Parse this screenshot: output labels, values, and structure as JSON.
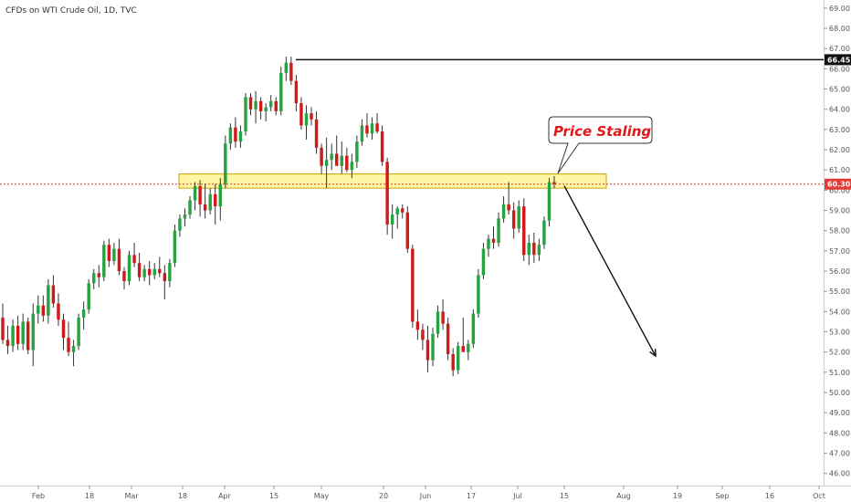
{
  "header": {
    "title": "CFDs on WTI Crude Oil, 1D, TVC"
  },
  "colors": {
    "up": "#26a240",
    "down": "#d01a1a",
    "wick": "#333333",
    "zone_fill": "#fff59a",
    "zone_stroke": "#c8a400",
    "resistance_line": "#111111",
    "current_line": "#e53935",
    "tag_black": "#111111",
    "tag_red": "#e53935"
  },
  "annotations": {
    "callout": "Price Staling",
    "resistance_tag": "66.45",
    "current_tag": "60.30"
  },
  "chart_data": {
    "type": "candlestick",
    "title": "CFDs on WTI Crude Oil, 1D, TVC",
    "ylim": [
      45.4,
      69.4
    ],
    "y_ticks": [
      "46.00",
      "47.00",
      "48.00",
      "49.00",
      "50.00",
      "51.00",
      "52.00",
      "53.00",
      "54.00",
      "55.00",
      "56.00",
      "57.00",
      "58.00",
      "59.00",
      "60.00",
      "61.00",
      "62.00",
      "63.00",
      "64.00",
      "65.00",
      "66.00",
      "67.00",
      "68.00",
      "69.00"
    ],
    "x_ticks": [
      "Feb",
      "18",
      "Mar",
      "18",
      "Apr",
      "15",
      "May",
      "20",
      "Jun",
      "17",
      "Jul",
      "15",
      "Aug",
      "19",
      "Sep",
      "16",
      "Oct"
    ],
    "resistance_level": 66.45,
    "current_price": 60.3,
    "supply_zone": [
      60.1,
      60.8
    ],
    "projection": {
      "from": 60.3,
      "to": 51.8
    },
    "ohlc": [
      [
        53.7,
        54.4,
        52.4,
        52.6
      ],
      [
        52.6,
        53.3,
        51.9,
        52.3
      ],
      [
        52.3,
        53.6,
        52.0,
        53.3
      ],
      [
        53.3,
        53.8,
        52.1,
        52.4
      ],
      [
        52.4,
        53.9,
        52.1,
        53.5
      ],
      [
        53.5,
        53.7,
        51.9,
        52.1
      ],
      [
        52.1,
        54.4,
        51.3,
        53.9
      ],
      [
        53.9,
        54.8,
        53.4,
        54.3
      ],
      [
        54.3,
        54.8,
        53.5,
        53.8
      ],
      [
        53.8,
        55.6,
        53.4,
        55.3
      ],
      [
        55.3,
        55.8,
        54.2,
        54.4
      ],
      [
        54.4,
        54.9,
        53.3,
        53.6
      ],
      [
        53.6,
        53.9,
        52.1,
        52.7
      ],
      [
        52.7,
        53.5,
        51.8,
        52.0
      ],
      [
        52.0,
        52.6,
        51.3,
        52.3
      ],
      [
        52.3,
        53.9,
        52.1,
        53.7
      ],
      [
        53.7,
        54.5,
        53.1,
        54.1
      ],
      [
        54.1,
        55.6,
        53.9,
        55.4
      ],
      [
        55.4,
        56.1,
        55.1,
        55.9
      ],
      [
        55.9,
        56.3,
        55.2,
        55.7
      ],
      [
        55.7,
        57.5,
        55.5,
        57.3
      ],
      [
        57.3,
        57.6,
        56.2,
        56.5
      ],
      [
        56.5,
        57.4,
        56.3,
        57.1
      ],
      [
        57.1,
        57.6,
        55.8,
        56.0
      ],
      [
        56.0,
        56.2,
        55.1,
        55.5
      ],
      [
        55.5,
        57.0,
        55.3,
        56.8
      ],
      [
        56.8,
        57.4,
        56.2,
        56.4
      ],
      [
        56.4,
        56.9,
        55.5,
        55.7
      ],
      [
        55.7,
        56.3,
        55.5,
        56.1
      ],
      [
        56.1,
        56.5,
        55.3,
        55.8
      ],
      [
        55.8,
        56.4,
        55.6,
        56.1
      ],
      [
        56.1,
        56.7,
        55.7,
        55.9
      ],
      [
        55.9,
        56.3,
        54.6,
        55.5
      ],
      [
        55.5,
        56.6,
        55.2,
        56.4
      ],
      [
        56.4,
        58.3,
        56.2,
        58.0
      ],
      [
        58.0,
        58.8,
        57.7,
        58.6
      ],
      [
        58.6,
        59.1,
        58.2,
        58.8
      ],
      [
        58.8,
        59.7,
        58.6,
        59.5
      ],
      [
        59.5,
        60.4,
        59.0,
        60.2
      ],
      [
        60.2,
        60.5,
        58.7,
        59.3
      ],
      [
        59.3,
        60.3,
        58.6,
        59.0
      ],
      [
        59.0,
        60.1,
        58.8,
        59.8
      ],
      [
        59.8,
        60.3,
        58.3,
        59.2
      ],
      [
        59.2,
        60.6,
        58.5,
        60.3
      ],
      [
        60.3,
        62.7,
        60.1,
        62.3
      ],
      [
        62.3,
        63.3,
        62.0,
        63.1
      ],
      [
        63.1,
        63.6,
        62.1,
        62.4
      ],
      [
        62.4,
        63.2,
        62.1,
        62.9
      ],
      [
        62.9,
        64.8,
        62.7,
        64.6
      ],
      [
        64.6,
        64.8,
        63.7,
        64.0
      ],
      [
        64.0,
        64.9,
        63.3,
        64.4
      ],
      [
        64.4,
        64.6,
        63.5,
        63.9
      ],
      [
        63.9,
        64.3,
        63.4,
        64.1
      ],
      [
        64.1,
        64.7,
        63.9,
        64.4
      ],
      [
        64.4,
        64.6,
        63.7,
        63.9
      ],
      [
        63.9,
        66.1,
        63.7,
        65.8
      ],
      [
        65.8,
        66.6,
        65.4,
        66.3
      ],
      [
        66.3,
        66.6,
        65.2,
        65.4
      ],
      [
        65.4,
        65.7,
        63.9,
        64.3
      ],
      [
        64.3,
        64.6,
        63.0,
        63.2
      ],
      [
        63.2,
        64.2,
        62.5,
        63.8
      ],
      [
        63.8,
        64.1,
        63.2,
        63.5
      ],
      [
        63.5,
        63.9,
        61.8,
        62.1
      ],
      [
        62.1,
        62.3,
        60.8,
        61.2
      ],
      [
        61.2,
        62.6,
        60.1,
        61.5
      ],
      [
        61.5,
        62.3,
        61.0,
        61.8
      ],
      [
        61.8,
        62.7,
        61.3,
        61.2
      ],
      [
        61.2,
        62.4,
        60.8,
        61.7
      ],
      [
        61.7,
        62.1,
        60.9,
        61.0
      ],
      [
        61.0,
        61.8,
        60.6,
        61.4
      ],
      [
        61.4,
        62.7,
        61.1,
        62.4
      ],
      [
        62.4,
        63.5,
        62.2,
        63.2
      ],
      [
        63.2,
        63.8,
        62.6,
        62.8
      ],
      [
        62.8,
        63.6,
        62.5,
        63.3
      ],
      [
        63.3,
        63.8,
        62.8,
        62.9
      ],
      [
        62.9,
        63.2,
        61.2,
        61.4
      ],
      [
        61.4,
        61.6,
        57.8,
        58.3
      ],
      [
        58.3,
        59.3,
        57.6,
        58.8
      ],
      [
        58.8,
        59.2,
        58.1,
        59.1
      ],
      [
        59.1,
        59.3,
        58.6,
        58.9
      ],
      [
        58.9,
        59.2,
        56.9,
        57.1
      ],
      [
        57.1,
        57.3,
        53.2,
        53.5
      ],
      [
        53.5,
        54.1,
        52.6,
        53.1
      ],
      [
        53.1,
        53.4,
        52.1,
        52.6
      ],
      [
        52.6,
        53.3,
        51.0,
        51.6
      ],
      [
        51.6,
        53.2,
        51.3,
        52.9
      ],
      [
        52.9,
        54.3,
        52.7,
        54.0
      ],
      [
        54.0,
        54.6,
        53.1,
        53.4
      ],
      [
        53.4,
        53.7,
        51.6,
        51.9
      ],
      [
        51.9,
        52.2,
        50.8,
        51.1
      ],
      [
        51.1,
        52.5,
        50.9,
        52.3
      ],
      [
        52.3,
        53.7,
        52.1,
        52.0
      ],
      [
        52.0,
        52.6,
        51.6,
        52.4
      ],
      [
        52.4,
        54.1,
        52.2,
        53.9
      ],
      [
        53.9,
        56.1,
        53.7,
        55.8
      ],
      [
        55.8,
        57.4,
        55.6,
        57.1
      ],
      [
        57.1,
        57.8,
        56.7,
        57.6
      ],
      [
        57.6,
        58.2,
        57.1,
        57.4
      ],
      [
        57.4,
        58.9,
        57.2,
        58.6
      ],
      [
        58.6,
        59.7,
        58.4,
        59.3
      ],
      [
        59.3,
        60.4,
        58.8,
        59.0
      ],
      [
        59.0,
        59.4,
        57.6,
        58.1
      ],
      [
        58.1,
        59.5,
        57.9,
        59.2
      ],
      [
        59.2,
        59.6,
        56.5,
        56.8
      ],
      [
        56.8,
        57.8,
        56.3,
        57.4
      ],
      [
        57.4,
        57.9,
        56.4,
        56.8
      ],
      [
        56.8,
        57.6,
        56.5,
        57.3
      ],
      [
        57.3,
        58.7,
        57.1,
        58.5
      ],
      [
        58.5,
        60.6,
        58.2,
        60.4
      ],
      [
        60.4,
        60.7,
        60.1,
        60.3
      ]
    ]
  }
}
